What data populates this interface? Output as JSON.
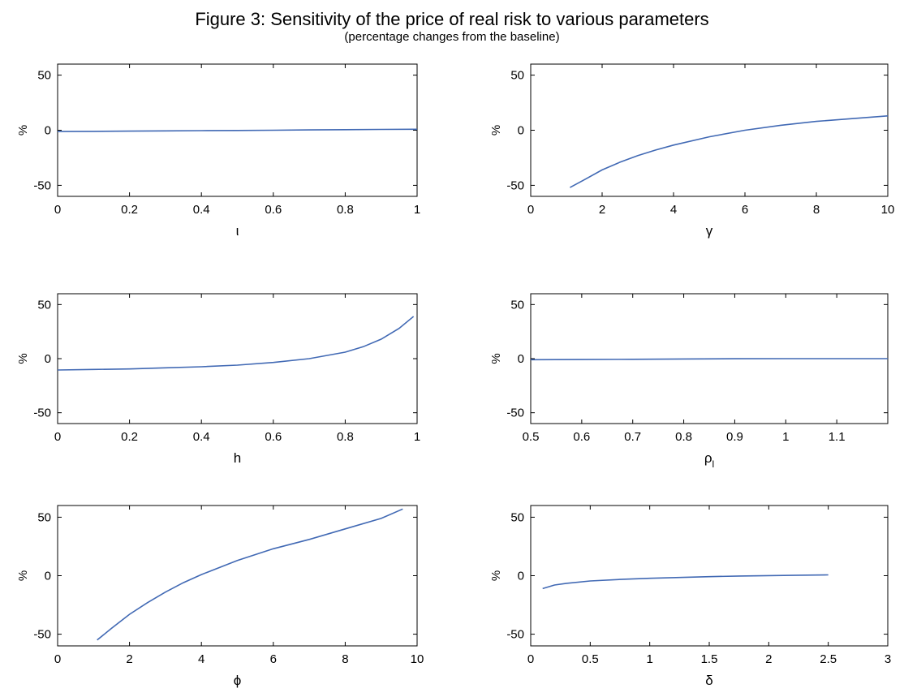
{
  "figure": {
    "title": "Figure 3: Sensitivity of the price of real risk to various parameters",
    "subtitle": "(percentage changes from the baseline)"
  },
  "colors": {
    "line": "#4169b4",
    "axis": "#000000"
  },
  "chart_data": [
    {
      "type": "line",
      "xlabel": "ι",
      "ylabel": "%",
      "xlim": [
        0,
        1
      ],
      "ylim": [
        -60,
        60
      ],
      "xticks": [
        0,
        0.2,
        0.4,
        0.6,
        0.8,
        1
      ],
      "xtick_labels": [
        "0",
        "0.2",
        "0.4",
        "0.6",
        "0.8",
        "1"
      ],
      "yticks": [
        -50,
        0,
        50
      ],
      "ytick_labels": [
        "-50",
        "0",
        "50"
      ],
      "series": [
        {
          "x": [
            0,
            0.1,
            0.2,
            0.3,
            0.4,
            0.5,
            0.6,
            0.7,
            0.8,
            0.9,
            1.0
          ],
          "y": [
            -1.2,
            -1.0,
            -0.8,
            -0.6,
            -0.4,
            -0.2,
            0.0,
            0.3,
            0.5,
            0.7,
            0.9
          ]
        }
      ]
    },
    {
      "type": "line",
      "xlabel": "γ",
      "ylabel": "%",
      "xlim": [
        0,
        10
      ],
      "ylim": [
        -60,
        60
      ],
      "xticks": [
        0,
        2,
        4,
        6,
        8,
        10
      ],
      "xtick_labels": [
        "0",
        "2",
        "4",
        "6",
        "8",
        "10"
      ],
      "yticks": [
        -50,
        0,
        50
      ],
      "ytick_labels": [
        "-50",
        "0",
        "50"
      ],
      "series": [
        {
          "x": [
            1.1,
            1.5,
            2,
            2.5,
            3,
            3.5,
            4,
            5,
            6,
            7,
            8,
            9,
            10
          ],
          "y": [
            -52,
            -45,
            -36,
            -29,
            -23,
            -18,
            -13.5,
            -6,
            0,
            4.5,
            8,
            10.5,
            13
          ]
        }
      ]
    },
    {
      "type": "line",
      "xlabel": "h",
      "ylabel": "%",
      "xlim": [
        0,
        1
      ],
      "ylim": [
        -60,
        60
      ],
      "xticks": [
        0,
        0.2,
        0.4,
        0.6,
        0.8,
        1
      ],
      "xtick_labels": [
        "0",
        "0.2",
        "0.4",
        "0.6",
        "0.8",
        "1"
      ],
      "yticks": [
        -50,
        0,
        50
      ],
      "ytick_labels": [
        "-50",
        "0",
        "50"
      ],
      "series": [
        {
          "x": [
            0,
            0.1,
            0.2,
            0.3,
            0.4,
            0.5,
            0.6,
            0.7,
            0.8,
            0.85,
            0.9,
            0.95,
            0.99
          ],
          "y": [
            -10.5,
            -10,
            -9.5,
            -8.5,
            -7.5,
            -6,
            -3.5,
            0,
            6,
            11,
            18,
            28,
            39
          ]
        }
      ]
    },
    {
      "type": "line",
      "xlabel": "ρl",
      "ylabel": "%",
      "xlim": [
        0.5,
        1.2
      ],
      "ylim": [
        -60,
        60
      ],
      "xticks": [
        0.5,
        0.6,
        0.7,
        0.8,
        0.9,
        1,
        1.1
      ],
      "xtick_labels": [
        "0.5",
        "0.6",
        "0.7",
        "0.8",
        "0.9",
        "1",
        "1.1"
      ],
      "yticks": [
        -50,
        0,
        50
      ],
      "ytick_labels": [
        "-50",
        "0",
        "50"
      ],
      "series": [
        {
          "x": [
            0.5,
            0.6,
            0.7,
            0.8,
            0.9,
            1.0,
            1.1,
            1.2
          ],
          "y": [
            -1.0,
            -0.8,
            -0.6,
            -0.3,
            -0.1,
            0.0,
            0.0,
            0.0
          ]
        }
      ]
    },
    {
      "type": "line",
      "xlabel": "ϕ",
      "ylabel": "%",
      "xlim": [
        0,
        10
      ],
      "ylim": [
        -60,
        60
      ],
      "xticks": [
        0,
        2,
        4,
        6,
        8,
        10
      ],
      "xtick_labels": [
        "0",
        "2",
        "4",
        "6",
        "8",
        "10"
      ],
      "yticks": [
        -50,
        0,
        50
      ],
      "ytick_labels": [
        "-50",
        "0",
        "50"
      ],
      "series": [
        {
          "x": [
            1.1,
            1.5,
            2,
            2.5,
            3,
            3.5,
            4,
            5,
            6,
            7,
            8,
            9,
            9.6
          ],
          "y": [
            -55,
            -45,
            -33,
            -23,
            -14,
            -6,
            1,
            13,
            23,
            31,
            40,
            49,
            57
          ]
        }
      ]
    },
    {
      "type": "line",
      "xlabel": "δ",
      "ylabel": "%",
      "xlim": [
        0,
        3
      ],
      "ylim": [
        -60,
        60
      ],
      "xticks": [
        0,
        0.5,
        1,
        1.5,
        2,
        2.5,
        3
      ],
      "xtick_labels": [
        "0",
        "0.5",
        "1",
        "1.5",
        "2",
        "2.5",
        "3"
      ],
      "yticks": [
        -50,
        0,
        50
      ],
      "ytick_labels": [
        "-50",
        "0",
        "50"
      ],
      "series": [
        {
          "x": [
            0.1,
            0.2,
            0.3,
            0.5,
            0.75,
            1.0,
            1.25,
            1.5,
            1.75,
            2.0,
            2.25,
            2.5
          ],
          "y": [
            -11,
            -8,
            -6.5,
            -4.5,
            -3.2,
            -2.2,
            -1.5,
            -0.8,
            -0.3,
            0.1,
            0.4,
            0.7
          ]
        }
      ]
    }
  ]
}
